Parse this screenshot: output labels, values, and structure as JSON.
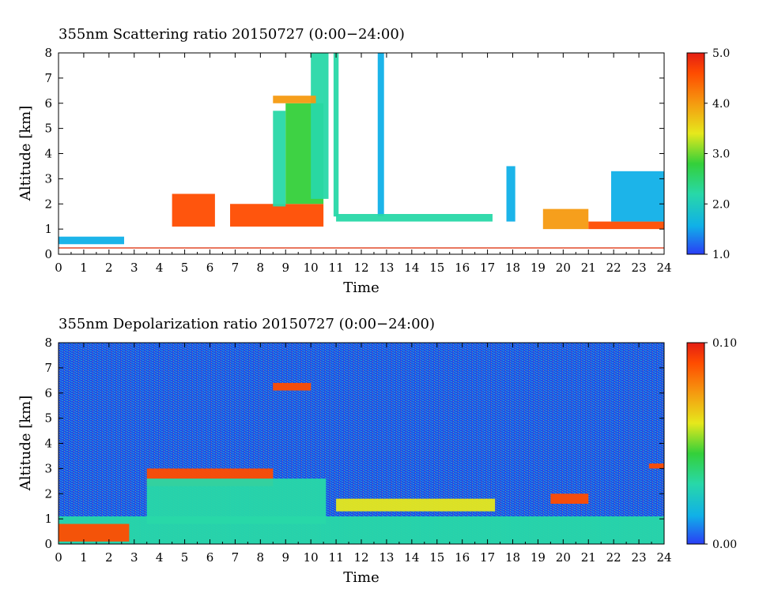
{
  "chart_data": [
    {
      "type": "heatmap",
      "title": "355nm Scattering ratio  20150727 (0:00−24:00)",
      "xlabel": "Time",
      "ylabel": "Altitude [km]",
      "xlim": [
        0,
        24
      ],
      "ylim": [
        0,
        8
      ],
      "x_ticks": [
        "0",
        "1",
        "2",
        "3",
        "4",
        "5",
        "6",
        "7",
        "8",
        "9",
        "10",
        "11",
        "12",
        "13",
        "14",
        "15",
        "16",
        "17",
        "18",
        "19",
        "20",
        "21",
        "22",
        "23",
        "24"
      ],
      "y_ticks": [
        "0",
        "1",
        "2",
        "3",
        "4",
        "5",
        "6",
        "7",
        "8"
      ],
      "colorbar": {
        "range": [
          1.0,
          5.0
        ],
        "ticks": [
          "1.0",
          "2.0",
          "3.0",
          "4.0",
          "5.0"
        ],
        "colors": [
          "#2a3df5",
          "#10b0e8",
          "#28d8a8",
          "#34d03a",
          "#e6e81c",
          "#f59a10",
          "#ff4c00",
          "#e41e14"
        ]
      },
      "background": "#ffffff",
      "ground_line": {
        "altitude_km": 0.25,
        "color": "#e24a2a"
      },
      "features": [
        {
          "name": "low-layer",
          "x0": 0.0,
          "x1": 2.6,
          "y0": 0.4,
          "y1": 0.7,
          "value": 1.8
        },
        {
          "name": "aerosol-a",
          "x0": 4.5,
          "x1": 6.2,
          "y0": 1.1,
          "y1": 2.4,
          "value": 4.3
        },
        {
          "name": "aerosol-b",
          "x0": 6.8,
          "x1": 10.5,
          "y0": 1.1,
          "y1": 2.0,
          "value": 4.4
        },
        {
          "name": "cloud-column-a",
          "x0": 8.5,
          "x1": 9.0,
          "y0": 1.9,
          "y1": 5.7,
          "value": 2.3
        },
        {
          "name": "cloud-column-b",
          "x0": 9.0,
          "x1": 10.5,
          "y0": 2.0,
          "y1": 6.0,
          "value": 2.8
        },
        {
          "name": "cloud-column-c",
          "x0": 10.0,
          "x1": 10.7,
          "y0": 2.2,
          "y1": 8.0,
          "value": 2.3
        },
        {
          "name": "aloft-cloud",
          "x0": 8.5,
          "x1": 10.2,
          "y0": 6.0,
          "y1": 6.3,
          "value": 3.8
        },
        {
          "name": "column-11",
          "x0": 10.9,
          "x1": 11.1,
          "y0": 1.5,
          "y1": 8.0,
          "value": 2.0
        },
        {
          "name": "column-13",
          "x0": 12.65,
          "x1": 12.9,
          "y0": 1.5,
          "y1": 8.0,
          "value": 1.6
        },
        {
          "name": "thin-layer",
          "x0": 11.0,
          "x1": 17.2,
          "y0": 1.3,
          "y1": 1.6,
          "value": 1.9
        },
        {
          "name": "plume-18",
          "x0": 17.75,
          "x1": 18.1,
          "y0": 1.3,
          "y1": 3.5,
          "value": 1.7
        },
        {
          "name": "aerosol-c",
          "x0": 19.2,
          "x1": 21.0,
          "y0": 1.0,
          "y1": 1.8,
          "value": 4.0
        },
        {
          "name": "aerosol-d",
          "x0": 21.0,
          "x1": 24.0,
          "y0": 1.0,
          "y1": 1.3,
          "value": 4.3
        },
        {
          "name": "cloud-22-24",
          "x0": 21.9,
          "x1": 24.0,
          "y0": 1.3,
          "y1": 3.3,
          "value": 1.8
        }
      ]
    },
    {
      "type": "heatmap",
      "title": "355nm Depolarization ratio  20150727 (0:00−24:00)",
      "xlabel": "Time",
      "ylabel": "Altitude [km]",
      "xlim": [
        0,
        24
      ],
      "ylim": [
        0,
        8
      ],
      "x_ticks": [
        "0",
        "1",
        "2",
        "3",
        "4",
        "5",
        "6",
        "7",
        "8",
        "9",
        "10",
        "11",
        "12",
        "13",
        "14",
        "15",
        "16",
        "17",
        "18",
        "19",
        "20",
        "21",
        "22",
        "23",
        "24"
      ],
      "y_ticks": [
        "0",
        "1",
        "2",
        "3",
        "4",
        "5",
        "6",
        "7",
        "8"
      ],
      "colorbar": {
        "range": [
          0.0,
          0.1
        ],
        "ticks": [
          "0.00",
          "0.10"
        ],
        "colors": [
          "#2a3df5",
          "#10b0e8",
          "#28d8a8",
          "#34d03a",
          "#e6e81c",
          "#f59a10",
          "#ff4c00",
          "#e41e14"
        ]
      },
      "background": "#1f4ee8",
      "features": [
        {
          "name": "boundary-layer",
          "x0": 0.0,
          "x1": 24.0,
          "y0": 0.0,
          "y1": 1.1,
          "value": 0.025
        },
        {
          "name": "surface-dust",
          "x0": 0.0,
          "x1": 2.8,
          "y0": 0.1,
          "y1": 0.8,
          "value": 0.09
        },
        {
          "name": "aerosol-top",
          "x0": 3.5,
          "x1": 8.5,
          "y0": 2.3,
          "y1": 3.0,
          "value": 0.08
        },
        {
          "name": "aerosol-body",
          "x0": 3.5,
          "x1": 10.6,
          "y0": 0.8,
          "y1": 2.6,
          "value": 0.025
        },
        {
          "name": "aloft-cloud",
          "x0": 8.5,
          "x1": 10.0,
          "y0": 6.1,
          "y1": 6.4,
          "value": 0.09
        },
        {
          "name": "thin-layer",
          "x0": 11.0,
          "x1": 17.3,
          "y0": 1.3,
          "y1": 1.8,
          "value": 0.05
        },
        {
          "name": "layer-20",
          "x0": 19.5,
          "x1": 21.0,
          "y0": 1.6,
          "y1": 2.0,
          "value": 0.085
        },
        {
          "name": "layer-23",
          "x0": 23.4,
          "x1": 24.0,
          "y0": 3.0,
          "y1": 3.2,
          "value": 0.09
        }
      ]
    }
  ]
}
